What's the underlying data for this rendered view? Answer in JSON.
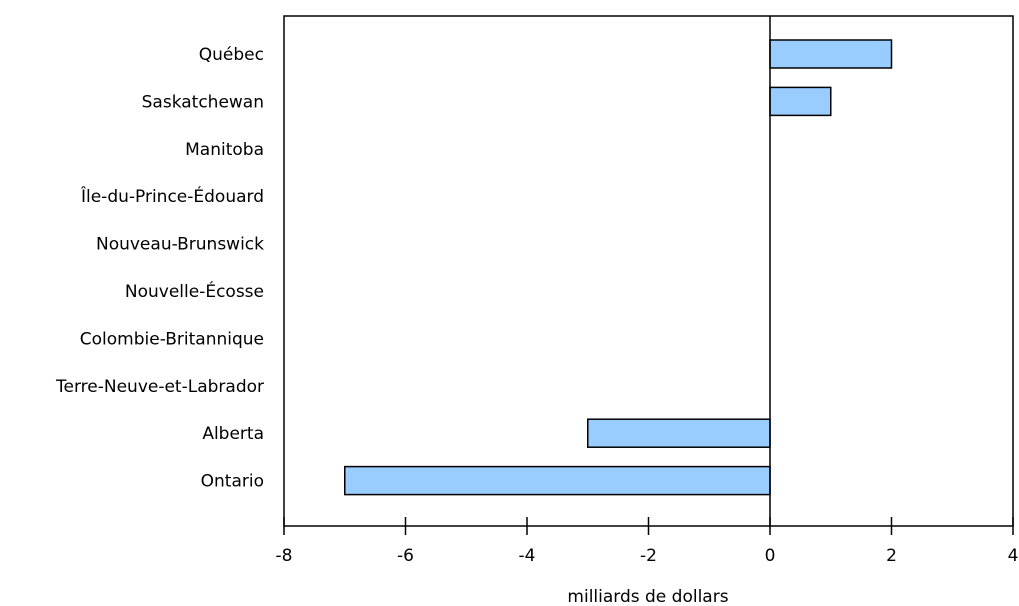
{
  "chart_data": {
    "type": "bar",
    "orientation": "horizontal",
    "categories": [
      "Québec",
      "Saskatchewan",
      "Manitoba",
      "Île-du-Prince-Édouard",
      "Nouveau-Brunswick",
      "Nouvelle-Écosse",
      "Colombie-Britannique",
      "Terre-Neuve-et-Labrador",
      "Alberta",
      "Ontario"
    ],
    "values": [
      2,
      1,
      0,
      0,
      0,
      0,
      0,
      0,
      -3,
      -7
    ],
    "xlabel": "milliards de dollars",
    "ylabel": "",
    "xlim": [
      -8,
      4
    ],
    "xticks": [
      -8,
      -6,
      -4,
      -2,
      0,
      2,
      4
    ],
    "xtick_labels": [
      "-8",
      "-6",
      "-4",
      "-2",
      "0",
      "2",
      "4"
    ],
    "grid": false,
    "bar_color": "#99ccff",
    "bar_edge_color": "#000000"
  }
}
